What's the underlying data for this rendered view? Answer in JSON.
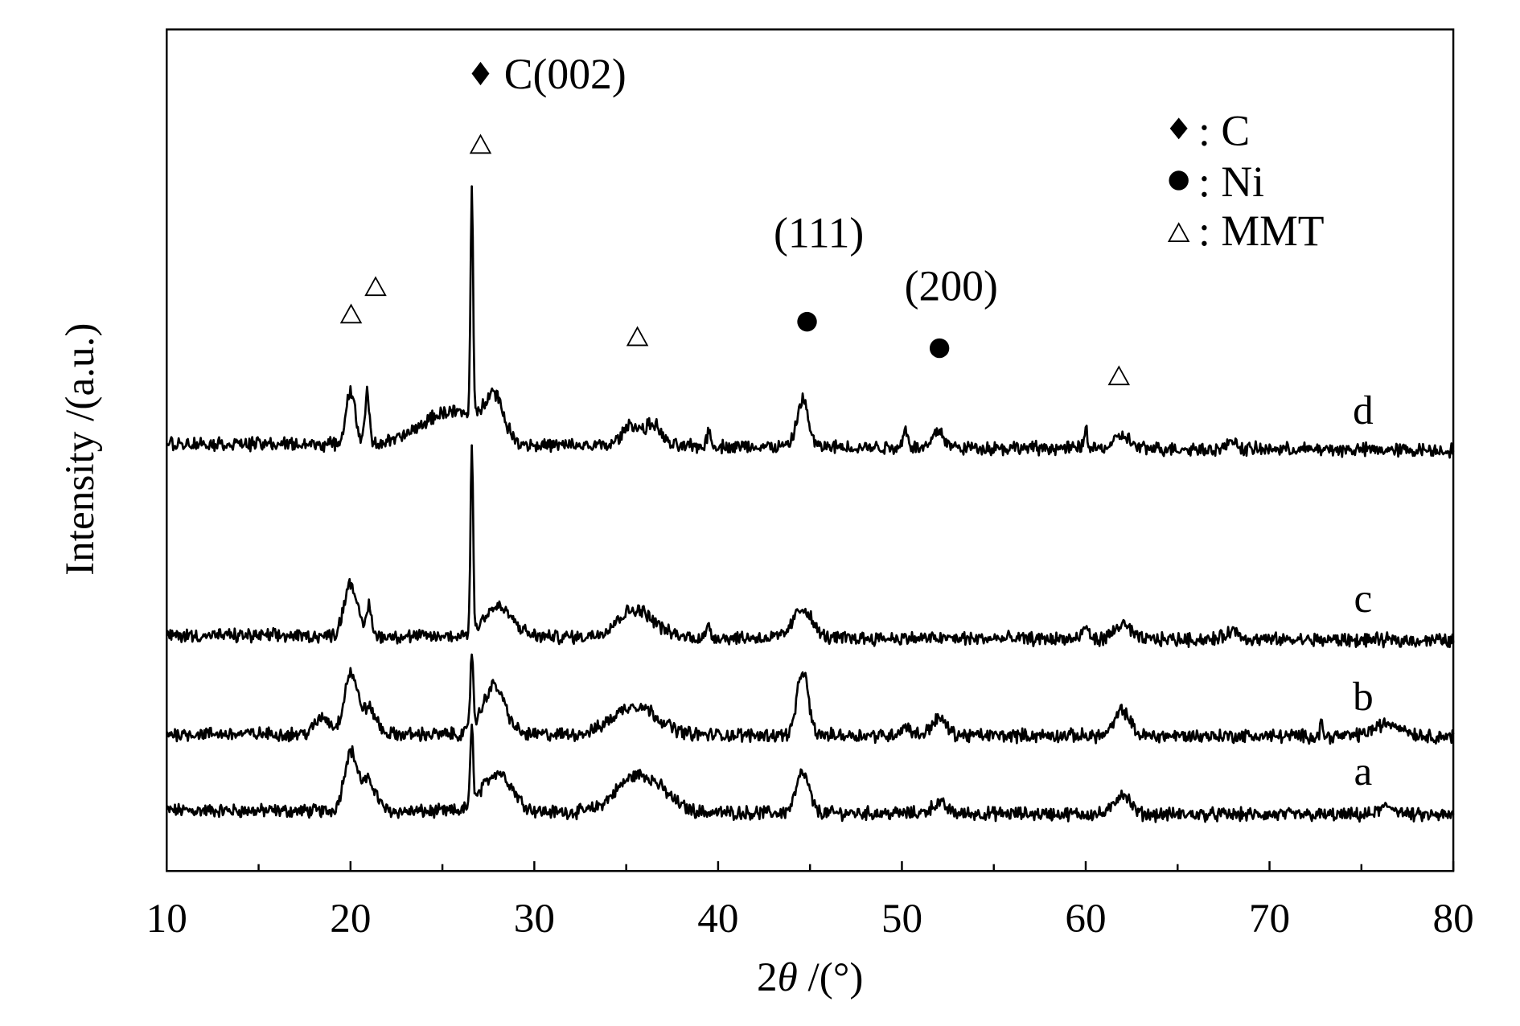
{
  "chart_data": {
    "type": "line",
    "xlabel_prefix": "2",
    "xlabel_theta": "θ",
    "xlabel_suffix": " /(°)",
    "ylabel": "Intensity /(a.u.)",
    "xlim": [
      10,
      80
    ],
    "ylim": [
      0,
      100
    ],
    "x_ticks": [
      "10",
      "20",
      "30",
      "40",
      "50",
      "60",
      "70",
      "80"
    ],
    "x_tick_values": [
      10,
      20,
      30,
      40,
      50,
      60,
      70,
      80
    ],
    "x_minor_tick_values": [
      15,
      25,
      35,
      45,
      55,
      65,
      75
    ],
    "y_ticks_shown": false,
    "grid": false,
    "colors": {
      "line": "#000000",
      "axis": "#000000"
    },
    "series": [
      {
        "name": "a",
        "baseline": [
          7.2,
          6.6
        ],
        "peaks": [
          [
            20.0,
            7.0,
            0.35
          ],
          [
            21.0,
            3.5,
            0.4
          ],
          [
            26.6,
            9.0,
            0.08
          ],
          [
            28.0,
            4.7,
            0.8
          ],
          [
            35.2,
            3.0,
            1.0
          ],
          [
            36.5,
            2.5,
            1.0
          ],
          [
            44.6,
            4.7,
            0.35
          ],
          [
            52.0,
            1.2,
            0.4
          ],
          [
            62.0,
            2.5,
            0.4
          ],
          [
            76.5,
            1.0,
            0.5
          ]
        ]
      },
      {
        "name": "b",
        "baseline": [
          16.3,
          16.0
        ],
        "peaks": [
          [
            18.5,
            2.0,
            0.4
          ],
          [
            20.0,
            7.2,
            0.35
          ],
          [
            21.0,
            3.0,
            0.4
          ],
          [
            26.6,
            9.3,
            0.08
          ],
          [
            27.8,
            5.8,
            0.6
          ],
          [
            35.5,
            3.5,
            1.2
          ],
          [
            44.6,
            7.6,
            0.3
          ],
          [
            50.2,
            1.0,
            0.3
          ],
          [
            52.0,
            2.0,
            0.4
          ],
          [
            62.0,
            3.0,
            0.4
          ],
          [
            72.8,
            2.5,
            0.05
          ],
          [
            76.5,
            1.5,
            0.8
          ]
        ]
      },
      {
        "name": "c",
        "baseline": [
          28.0,
          27.4
        ],
        "peaks": [
          [
            20.0,
            6.4,
            0.35
          ],
          [
            21.0,
            3.5,
            0.15
          ],
          [
            26.6,
            22.0,
            0.07
          ],
          [
            28.0,
            3.5,
            0.8
          ],
          [
            35.5,
            3.3,
            1.0
          ],
          [
            39.5,
            1.5,
            0.1
          ],
          [
            44.6,
            3.5,
            0.5
          ],
          [
            60.0,
            1.5,
            0.15
          ],
          [
            62.0,
            1.8,
            0.4
          ],
          [
            68.0,
            1.0,
            0.4
          ]
        ]
      },
      {
        "name": "d",
        "baseline": [
          50.8,
          50.0
        ],
        "peaks": [
          [
            20.0,
            6.4,
            0.25
          ],
          [
            20.9,
            6.0,
            0.12
          ],
          [
            25.5,
            4.0,
            1.6
          ],
          [
            26.6,
            27.4,
            0.07
          ],
          [
            27.8,
            5.0,
            0.5
          ],
          [
            35.3,
            2.5,
            0.5
          ],
          [
            36.5,
            2.5,
            0.4
          ],
          [
            39.5,
            2.0,
            0.1
          ],
          [
            44.6,
            5.6,
            0.3
          ],
          [
            50.2,
            2.0,
            0.15
          ],
          [
            52.0,
            2.0,
            0.3
          ],
          [
            60.0,
            2.3,
            0.1
          ],
          [
            62.0,
            1.5,
            0.4
          ],
          [
            68.0,
            1.2,
            0.2
          ]
        ]
      }
    ],
    "annotations": {
      "c002_label": "C(002)",
      "hkl_111": "(111)",
      "hkl_200": "(200)",
      "mmt_markers_2theta": [
        20.1,
        21.4,
        27.2,
        35.6,
        61.7
      ],
      "ni_markers_2theta": [
        45.0,
        52.1
      ]
    },
    "legend": {
      "placement": "top-right",
      "items": [
        {
          "symbol": "diamond",
          "label": ": C"
        },
        {
          "symbol": "circle",
          "label": ": Ni"
        },
        {
          "symbol": "triangle",
          "label": ": MMT"
        }
      ]
    }
  }
}
